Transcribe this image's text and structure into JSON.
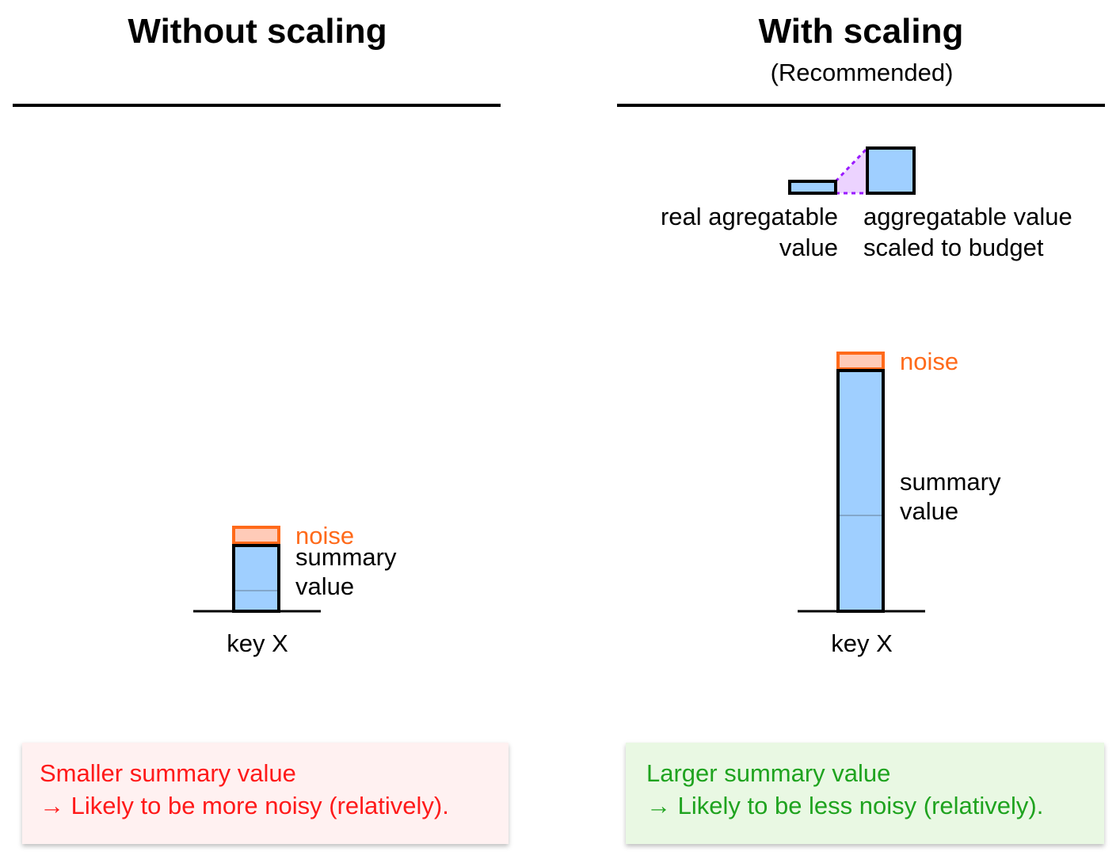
{
  "left": {
    "title": "Without scaling",
    "noise_label": "noise",
    "summary_label_1": "summary",
    "summary_label_2": "value",
    "key_label": "key X",
    "callout_line_1": "Smaller summary value",
    "callout_line_2": "→ Likely to be more noisy (relatively)."
  },
  "right": {
    "title": "With scaling",
    "subtitle": "(Recommended)",
    "real_label_1": "real agregatable",
    "real_label_2": "value",
    "scaled_label_1": "aggregatable value",
    "scaled_label_2": "scaled to budget",
    "noise_label": "noise",
    "summary_label_1": "summary",
    "summary_label_2": "value",
    "key_label": "key X",
    "callout_line_1": "Larger summary value",
    "callout_line_2": "→ Likely to be less noisy (relatively)."
  },
  "colors": {
    "bar_fill": "#9fcfff",
    "noise_stroke": "#ff6a1a",
    "noise_fill": "#ffcbb8",
    "scaling_fill": "#ecd3ff",
    "scaling_stroke": "#9a1aff",
    "bad_text": "#ff1a1a",
    "bad_bg": "#fff1f1",
    "good_text": "#1fa31f",
    "good_bg": "#e9f8e3"
  }
}
